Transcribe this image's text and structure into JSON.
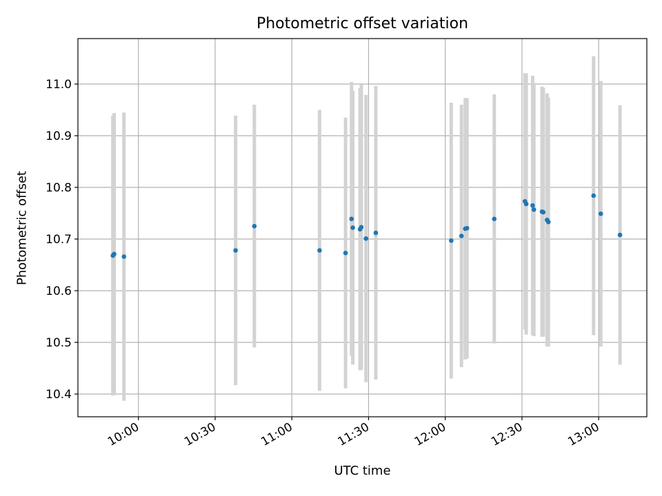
{
  "chart_data": {
    "type": "scatter",
    "title": "Photometric offset variation",
    "xlabel": "UTC time",
    "ylabel": "Photometric offset",
    "x_ticks": [
      "10:00",
      "10:30",
      "11:00",
      "11:30",
      "12:00",
      "12:30",
      "13:00"
    ],
    "y_ticks": [
      "10.4",
      "10.5",
      "10.6",
      "10.7",
      "10.8",
      "10.9",
      "11.0"
    ],
    "xlim": [
      "09:36:20",
      "13:18:50"
    ],
    "ylim": [
      10.356,
      11.088
    ],
    "grid": true,
    "marker_color": "#1f77b4",
    "errorbar_color": "#d3d3d3",
    "series": [
      {
        "points": [
          {
            "x": "09:50:00",
            "y": 10.668,
            "yerr": 0.271
          },
          {
            "x": "09:50:30",
            "y": 10.671,
            "yerr": 0.273
          },
          {
            "x": "09:54:20",
            "y": 10.666,
            "yerr": 0.279
          },
          {
            "x": "10:38:00",
            "y": 10.678,
            "yerr": 0.261
          },
          {
            "x": "10:45:20",
            "y": 10.725,
            "yerr": 0.235
          },
          {
            "x": "11:10:50",
            "y": 10.678,
            "yerr": 0.272
          },
          {
            "x": "11:21:00",
            "y": 10.673,
            "yerr": 0.262
          },
          {
            "x": "11:23:20",
            "y": 10.739,
            "yerr": 0.265
          },
          {
            "x": "11:23:50",
            "y": 10.722,
            "yerr": 0.265
          },
          {
            "x": "11:26:40",
            "y": 10.719,
            "yerr": 0.273
          },
          {
            "x": "11:27:10",
            "y": 10.723,
            "yerr": 0.276
          },
          {
            "x": "11:29:00",
            "y": 10.701,
            "yerr": 0.278
          },
          {
            "x": "11:32:50",
            "y": 10.712,
            "yerr": 0.284
          },
          {
            "x": "12:02:20",
            "y": 10.697,
            "yerr": 0.267
          },
          {
            "x": "12:06:20",
            "y": 10.706,
            "yerr": 0.254
          },
          {
            "x": "12:07:50",
            "y": 10.72,
            "yerr": 0.253
          },
          {
            "x": "12:08:30",
            "y": 10.721,
            "yerr": 0.252
          },
          {
            "x": "12:19:10",
            "y": 10.739,
            "yerr": 0.241
          },
          {
            "x": "12:31:10",
            "y": 10.773,
            "yerr": 0.248
          },
          {
            "x": "12:31:40",
            "y": 10.768,
            "yerr": 0.253
          },
          {
            "x": "12:34:10",
            "y": 10.765,
            "yerr": 0.251
          },
          {
            "x": "12:34:40",
            "y": 10.757,
            "yerr": 0.245
          },
          {
            "x": "12:37:50",
            "y": 10.753,
            "yerr": 0.242
          },
          {
            "x": "12:38:20",
            "y": 10.752,
            "yerr": 0.241
          },
          {
            "x": "12:39:50",
            "y": 10.737,
            "yerr": 0.245
          },
          {
            "x": "12:40:20",
            "y": 10.733,
            "yerr": 0.241
          },
          {
            "x": "12:58:00",
            "y": 10.784,
            "yerr": 0.27
          },
          {
            "x": "13:00:50",
            "y": 10.749,
            "yerr": 0.257
          },
          {
            "x": "13:08:20",
            "y": 10.708,
            "yerr": 0.251
          }
        ]
      }
    ]
  }
}
